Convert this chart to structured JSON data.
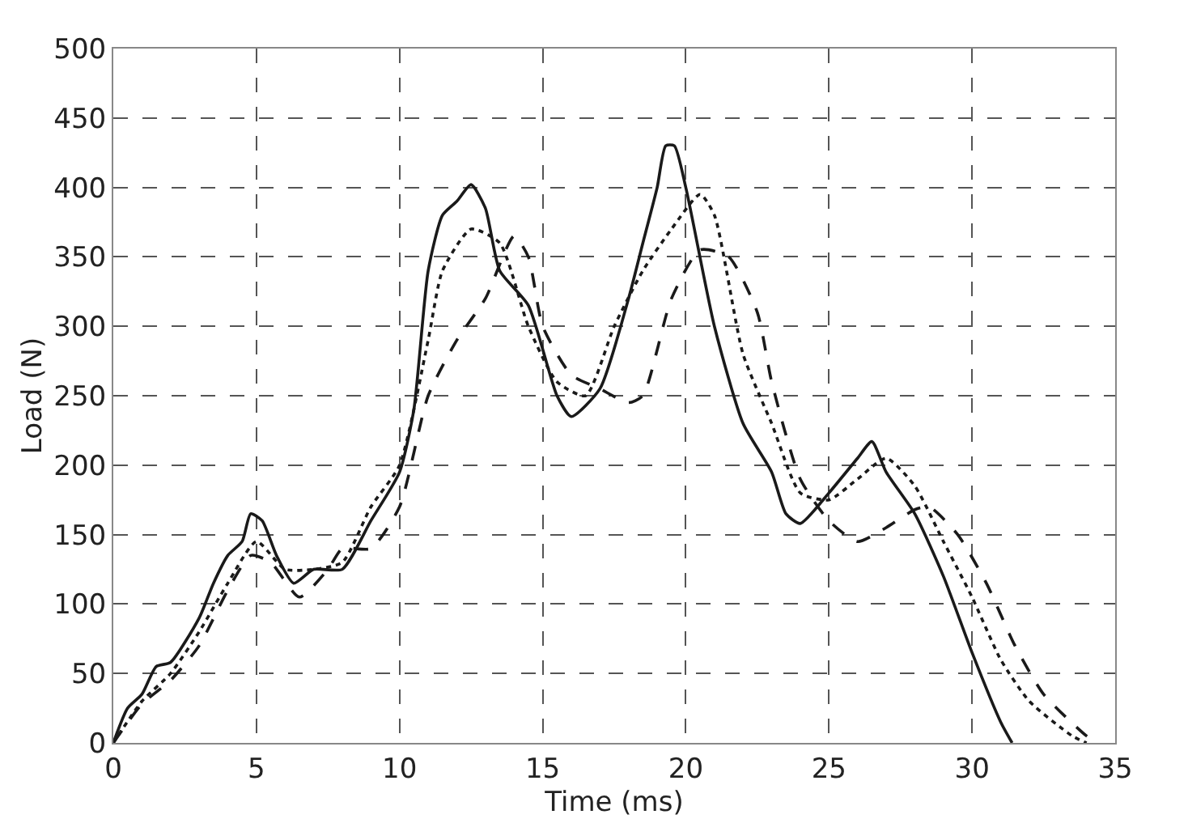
{
  "chart_data": {
    "type": "line",
    "xlabel": "Time (ms)",
    "ylabel": "Load (N)",
    "xlim": [
      0,
      35
    ],
    "xticks": [
      0,
      5,
      10,
      15,
      20,
      25,
      30,
      35
    ],
    "ylim": [
      0,
      500
    ],
    "yticks": [
      0,
      50,
      100,
      150,
      200,
      250,
      300,
      350,
      400,
      450,
      500
    ],
    "grid": true,
    "marker": "none",
    "series": [
      {
        "color": "#1a1a1a",
        "line_style": "solid",
        "x": [
          0,
          0.5,
          1,
          1.5,
          2,
          3,
          3.5,
          4,
          4.5,
          4.8,
          5.2,
          5.7,
          6.3,
          7,
          8,
          9,
          10,
          10.5,
          11,
          11.5,
          12,
          12.5,
          13,
          13.5,
          14.5,
          15.5,
          16,
          17,
          18,
          18.5,
          19,
          19.3,
          19.6,
          20,
          21,
          22,
          23,
          23.5,
          24,
          25,
          26,
          26.5,
          27,
          28,
          29,
          30,
          31,
          31.4
        ],
        "values": [
          0,
          25,
          35,
          55,
          58,
          90,
          115,
          135,
          145,
          165,
          160,
          135,
          115,
          125,
          125,
          160,
          195,
          240,
          340,
          380,
          390,
          402,
          385,
          340,
          315,
          250,
          235,
          255,
          320,
          360,
          400,
          430,
          430,
          400,
          300,
          230,
          195,
          165,
          158,
          180,
          205,
          217,
          195,
          165,
          120,
          65,
          15,
          0
        ]
      },
      {
        "color": "#1a1a1a",
        "line_style": "dashed",
        "x": [
          0,
          1,
          2,
          3,
          4,
          4.8,
          5.5,
          6.5,
          7.5,
          8,
          9,
          10,
          11,
          12,
          13,
          14,
          14.5,
          15,
          16,
          17,
          18,
          18.5,
          19.5,
          20.5,
          21.5,
          22.5,
          23,
          24,
          25,
          26,
          27,
          28,
          28.5,
          29.5,
          30.5,
          31.5,
          32.5,
          34,
          34.4
        ],
        "values": [
          0,
          28,
          45,
          70,
          110,
          135,
          130,
          105,
          125,
          140,
          140,
          170,
          250,
          290,
          320,
          365,
          350,
          300,
          265,
          255,
          245,
          250,
          320,
          355,
          350,
          310,
          260,
          190,
          160,
          145,
          155,
          168,
          170,
          150,
          115,
          70,
          35,
          5,
          0
        ]
      },
      {
        "color": "#1a1a1a",
        "line_style": "dotted",
        "x": [
          0,
          1,
          2,
          3,
          4,
          5,
          6,
          7,
          8,
          9,
          10,
          11,
          11.5,
          12.5,
          13.5,
          14.5,
          15.5,
          16.5,
          17.5,
          18.5,
          19.5,
          20.5,
          21,
          22,
          23,
          24,
          25,
          26,
          27,
          28,
          29,
          30,
          31,
          32,
          33.5,
          34
        ],
        "values": [
          0,
          30,
          50,
          80,
          115,
          145,
          125,
          125,
          130,
          170,
          200,
          290,
          340,
          370,
          360,
          300,
          260,
          250,
          300,
          340,
          370,
          395,
          380,
          280,
          230,
          180,
          175,
          190,
          205,
          185,
          145,
          105,
          60,
          30,
          5,
          0
        ]
      }
    ]
  }
}
